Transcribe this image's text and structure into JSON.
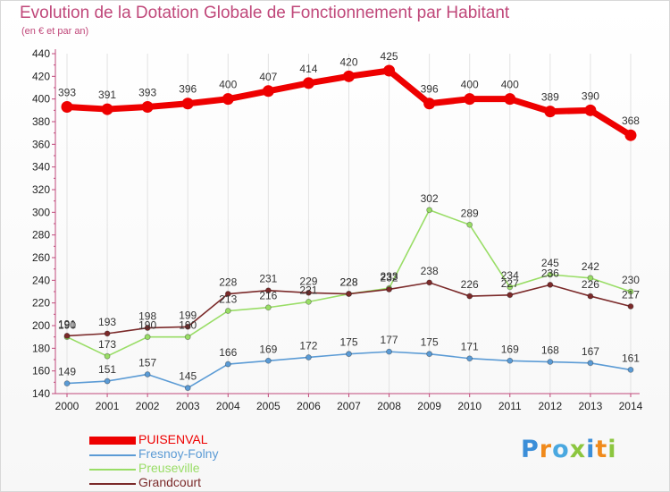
{
  "header": {
    "title": "Evolution de la Dotation Globale de Fonctionnement par Habitant",
    "subtitle": "(en € et par an)"
  },
  "logo": {
    "text": "Proxiti",
    "letters": [
      "P",
      "r",
      "o",
      "x",
      "i",
      "t",
      "i"
    ],
    "letter_colors": [
      "#3b8ed8",
      "#f08a1c",
      "#4aa8e0",
      "#8cc63f",
      "#3b8ed8",
      "#f08a1c",
      "#8cc63f"
    ]
  },
  "colors": {
    "title": "#c0487a",
    "axis": "#c0487a",
    "grid": "#e2e2e2"
  },
  "chart_data": {
    "type": "line",
    "x": [
      "2000",
      "2001",
      "2002",
      "2003",
      "2004",
      "2005",
      "2006",
      "2007",
      "2008",
      "2009",
      "2010",
      "2011",
      "2012",
      "2013",
      "2014"
    ],
    "ylim": [
      140,
      440
    ],
    "yticks": [
      140,
      160,
      180,
      200,
      220,
      240,
      260,
      280,
      300,
      320,
      340,
      360,
      380,
      400,
      420,
      440
    ],
    "grid": false,
    "legend_position": "bottom-left",
    "series": [
      {
        "name": "PUISENVAL",
        "color": "#ee0000",
        "values": [
          393,
          391,
          393,
          396,
          400,
          407,
          414,
          420,
          425,
          396,
          400,
          400,
          389,
          390,
          368
        ]
      },
      {
        "name": "Fresnoy-Folny",
        "color": "#5b9bd5",
        "values": [
          149,
          151,
          157,
          145,
          166,
          169,
          172,
          175,
          177,
          175,
          171,
          169,
          168,
          167,
          161
        ]
      },
      {
        "name": "Preuseville",
        "color": "#99dd66",
        "values": [
          190,
          173,
          190,
          190,
          213,
          216,
          221,
          228,
          233,
          302,
          289,
          234,
          245,
          242,
          230
        ]
      },
      {
        "name": "Grandcourt",
        "color": "#7b2a2a",
        "values": [
          191,
          193,
          198,
          199,
          228,
          231,
          229,
          228,
          232,
          238,
          226,
          227,
          236,
          226,
          217
        ]
      }
    ]
  }
}
